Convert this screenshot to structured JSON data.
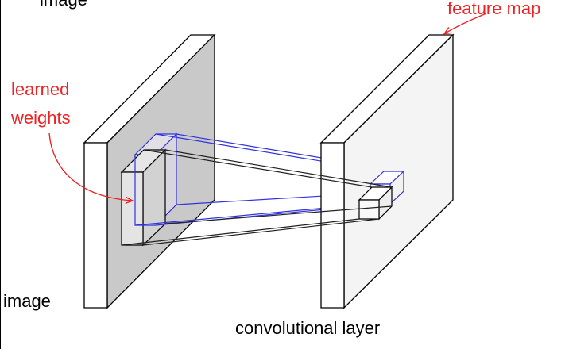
{
  "labels": {
    "image_top": "image",
    "feature_map": "feature map",
    "learned_weights_line1": "learned",
    "learned_weights_line2": "weights",
    "image_bottom": "image",
    "conv_layer": "convolutional layer"
  },
  "colors": {
    "annotation_red": "#ee2222",
    "filter_blue": "#3333dd",
    "outline_black": "#000000",
    "input_face_gray": "#c9c9c9",
    "output_face_gray": "#f4f4f4"
  }
}
